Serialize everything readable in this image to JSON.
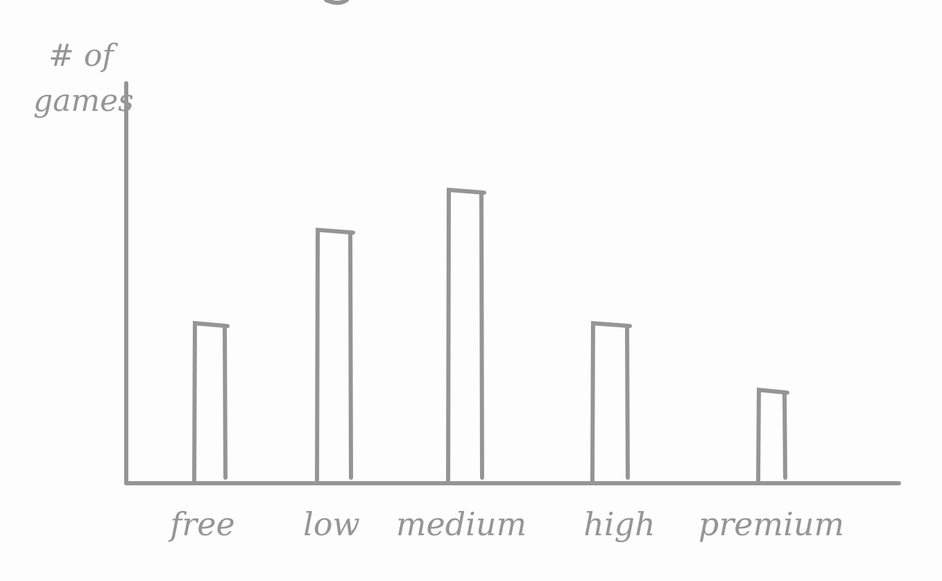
{
  "chart_data": {
    "type": "bar",
    "title": "",
    "xlabel": "",
    "ylabel": "# of games",
    "categories": [
      "free",
      "low",
      "medium",
      "high",
      "premium"
    ],
    "values": [
      6,
      9.5,
      11,
      6,
      3.5
    ],
    "ylim": [
      0,
      15
    ],
    "grid": false,
    "colors": {
      "stroke": "#959595",
      "background": "#fdfdfd"
    }
  }
}
